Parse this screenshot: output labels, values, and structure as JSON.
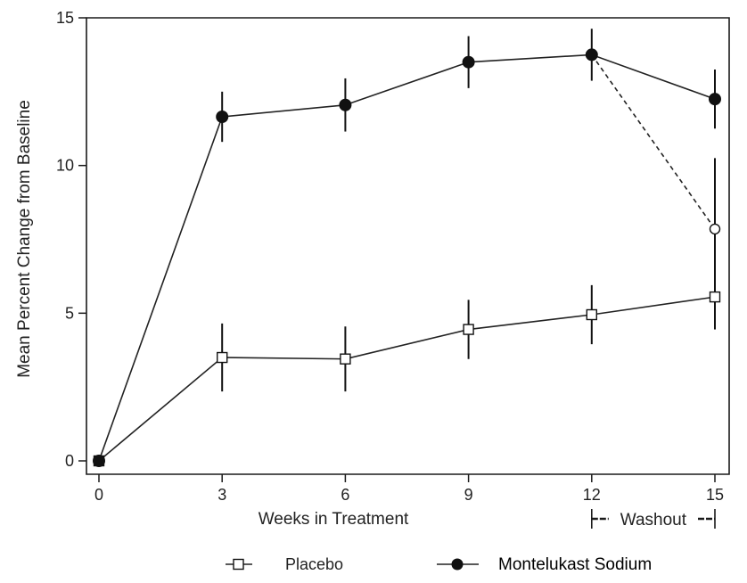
{
  "chart_data": {
    "type": "line",
    "title": "",
    "xlabel": "Weeks in Treatment",
    "ylabel": "Mean Percent Change from Baseline",
    "xlim": [
      0,
      15
    ],
    "ylim": [
      0,
      15
    ],
    "xticks": [
      0,
      3,
      6,
      9,
      12,
      15
    ],
    "xtick_labels": [
      "0",
      "3",
      "6",
      "9",
      "12",
      "15"
    ],
    "yticks": [
      0,
      5,
      10,
      15
    ],
    "ytick_labels": [
      "0",
      "5",
      "10",
      "15"
    ],
    "grid": false,
    "annotation": {
      "text": "Washout",
      "x_range": [
        12,
        15
      ]
    },
    "legend": {
      "placement": "bottom",
      "entries": [
        "Placebo",
        "Montelukast Sodium"
      ]
    },
    "series": [
      {
        "name": "Placebo",
        "marker": "open-square",
        "x": [
          0,
          3,
          6,
          9,
          12,
          15
        ],
        "values": [
          0,
          3.5,
          3.45,
          4.45,
          4.95,
          5.55
        ],
        "error": [
          0,
          1.15,
          1.1,
          1.0,
          1.0,
          1.1
        ]
      },
      {
        "name": "Montelukast Sodium",
        "marker": "filled-circle",
        "x": [
          0,
          3,
          6,
          9,
          12,
          15
        ],
        "values": [
          0,
          11.65,
          12.05,
          13.5,
          13.75,
          12.25
        ],
        "error": [
          0,
          0.85,
          0.9,
          0.88,
          0.88,
          1.0
        ]
      },
      {
        "name": "Montelukast Sodium (washout to placebo)",
        "marker": "open-circle",
        "line": "dashed",
        "x": [
          12,
          15
        ],
        "values": [
          13.75,
          7.85
        ],
        "error": [
          0,
          2.4
        ]
      }
    ]
  }
}
